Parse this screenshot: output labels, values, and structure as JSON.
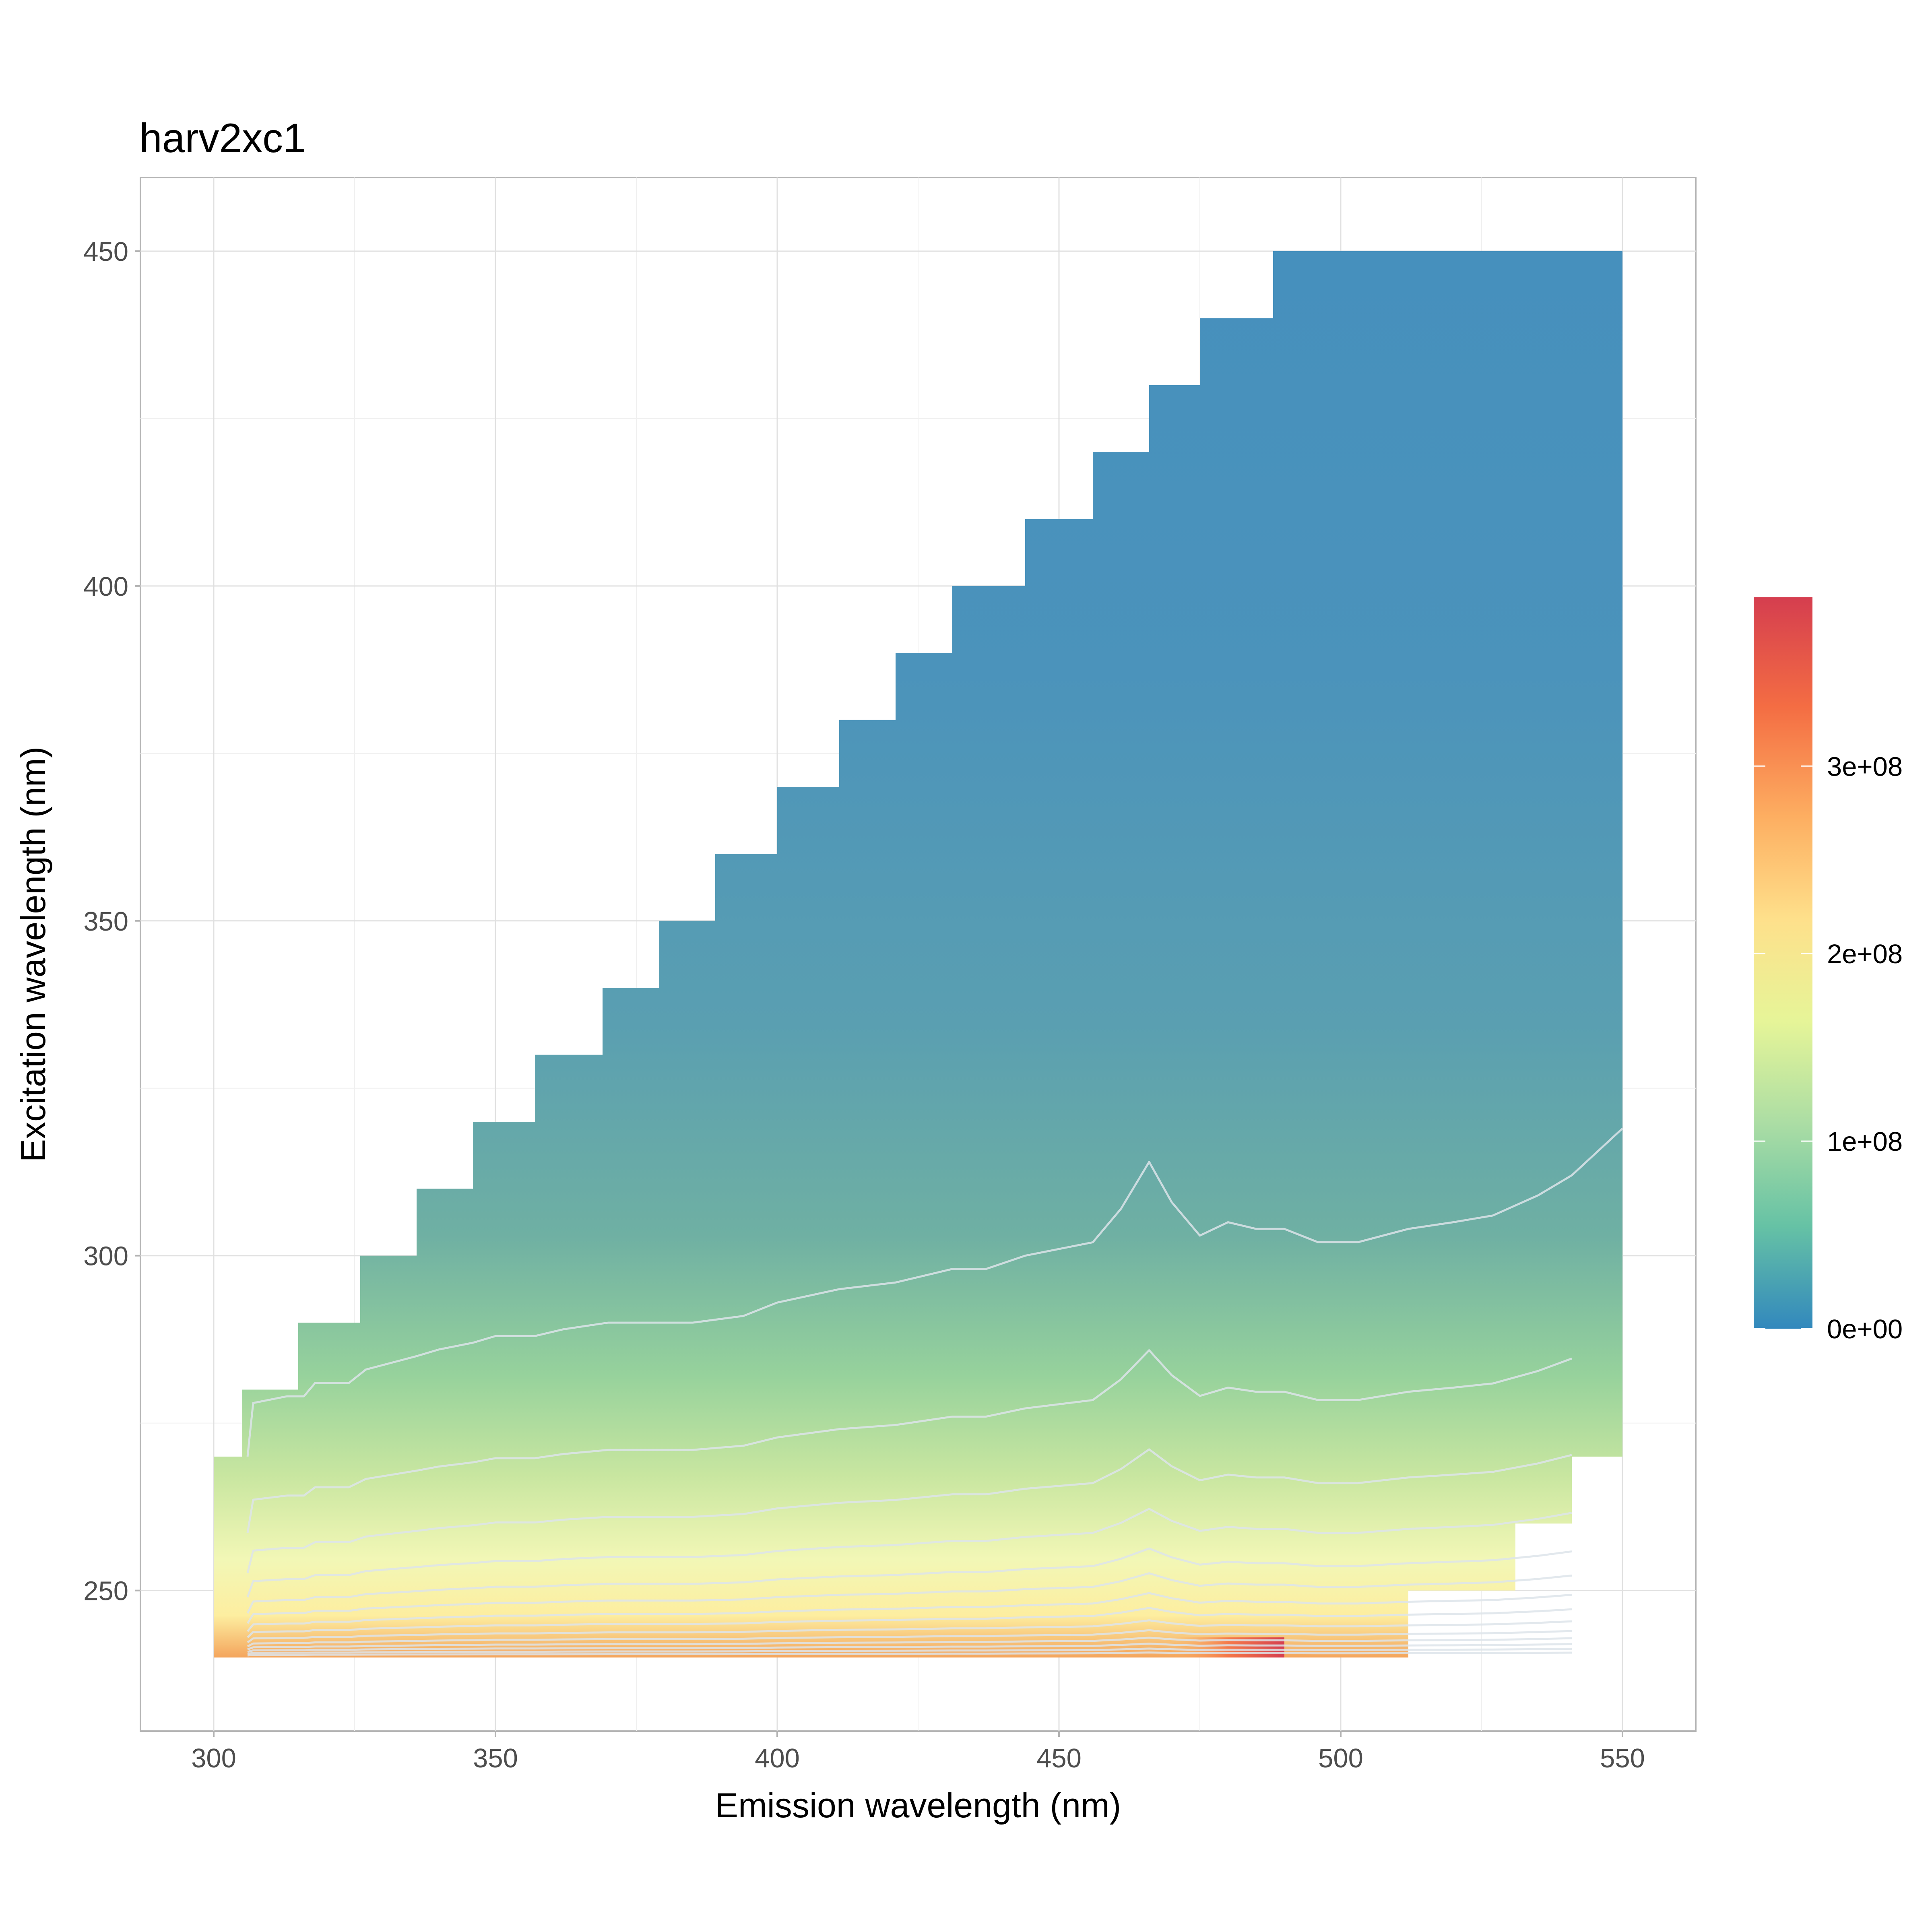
{
  "chart_data": {
    "type": "heatmap",
    "subtype": "contour-filled",
    "title": "harv2xc1",
    "xlabel": "Emission wavelength (nm)",
    "ylabel": "Excitation wavelength (nm)",
    "xlim": [
      287,
      563
    ],
    "ylim": [
      229,
      461
    ],
    "x_ticks": [
      300,
      350,
      400,
      450,
      500,
      550
    ],
    "y_ticks": [
      250,
      300,
      350,
      400,
      450
    ],
    "grid": true,
    "colorscale": [
      "#3288bd",
      "#66c2a5",
      "#abdda4",
      "#e6f598",
      "#fee08b",
      "#fdae61",
      "#f46d43",
      "#d53e4f"
    ],
    "legend": {
      "position": "right",
      "breaks": [
        0,
        100000000,
        200000000,
        300000000
      ],
      "labels": [
        "0e+00",
        "1e+08",
        "2e+08",
        "3e+08"
      ],
      "range": [
        0,
        390000000
      ]
    },
    "region_upper_boundary": [
      [
        300,
        270
      ],
      [
        305,
        270
      ],
      [
        305,
        280
      ],
      [
        315,
        280
      ],
      [
        315,
        290
      ],
      [
        326,
        290
      ],
      [
        326,
        300
      ],
      [
        336,
        300
      ],
      [
        336,
        310
      ],
      [
        346,
        310
      ],
      [
        346,
        320
      ],
      [
        357,
        320
      ],
      [
        357,
        330
      ],
      [
        369,
        330
      ],
      [
        369,
        340
      ],
      [
        379,
        340
      ],
      [
        379,
        350
      ],
      [
        389,
        350
      ],
      [
        389,
        360
      ],
      [
        400,
        360
      ],
      [
        400,
        370
      ],
      [
        411,
        370
      ],
      [
        411,
        380
      ],
      [
        421,
        380
      ],
      [
        421,
        390
      ],
      [
        431,
        390
      ],
      [
        431,
        400
      ],
      [
        444,
        400
      ],
      [
        444,
        410
      ],
      [
        456,
        410
      ],
      [
        456,
        420
      ],
      [
        466,
        420
      ],
      [
        466,
        430
      ],
      [
        475,
        430
      ],
      [
        475,
        440
      ],
      [
        488,
        440
      ],
      [
        488,
        450
      ],
      [
        550,
        450
      ]
    ],
    "region_lower_boundary": [
      [
        300,
        240
      ],
      [
        492,
        240
      ],
      [
        492,
        240
      ],
      [
        512,
        240
      ],
      [
        512,
        250
      ],
      [
        531,
        250
      ],
      [
        531,
        260
      ],
      [
        541,
        260
      ],
      [
        541,
        270
      ],
      [
        550,
        270
      ]
    ],
    "contours": [
      [
        [
          306,
          270
        ],
        [
          307,
          278
        ],
        [
          313,
          279
        ],
        [
          316,
          279
        ],
        [
          318,
          281
        ],
        [
          324,
          281
        ],
        [
          327,
          283
        ],
        [
          336,
          285
        ],
        [
          340,
          286
        ],
        [
          346,
          287
        ],
        [
          350,
          288
        ],
        [
          357,
          288
        ],
        [
          362,
          289
        ],
        [
          370,
          290
        ],
        [
          380,
          290
        ],
        [
          385,
          290
        ],
        [
          394,
          291
        ],
        [
          400,
          293
        ],
        [
          411,
          295
        ],
        [
          421,
          296
        ],
        [
          431,
          298
        ],
        [
          437,
          298
        ],
        [
          444,
          300
        ],
        [
          450,
          301
        ],
        [
          456,
          302
        ],
        [
          461,
          307
        ],
        [
          466,
          314
        ],
        [
          470,
          308
        ],
        [
          475,
          303
        ],
        [
          480,
          305
        ],
        [
          485,
          304
        ],
        [
          490,
          304
        ],
        [
          496,
          302
        ],
        [
          503,
          302
        ],
        [
          512,
          304
        ],
        [
          520,
          305
        ],
        [
          527,
          306
        ],
        [
          535,
          309
        ],
        [
          541,
          312
        ],
        [
          550,
          319
        ]
      ]
    ],
    "colorbar_max_label": "3e+08",
    "peak_region": {
      "x": [
        470,
        490
      ],
      "y": [
        240,
        243
      ]
    }
  }
}
